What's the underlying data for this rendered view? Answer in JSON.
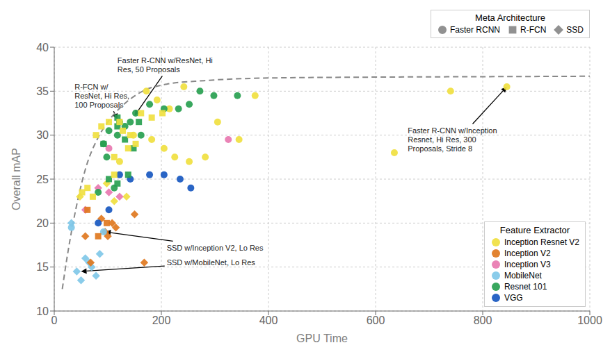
{
  "chart_data": {
    "type": "scatter",
    "xlabel": "GPU Time",
    "ylabel": "Overall mAP",
    "xlim": [
      0,
      1000
    ],
    "ylim": [
      10,
      40
    ],
    "xticks": [
      0,
      200,
      400,
      600,
      800,
      1000
    ],
    "yticks": [
      10,
      15,
      20,
      25,
      30,
      35,
      40
    ],
    "grid": true,
    "marker_legend": {
      "title": "Meta Architecture",
      "items": [
        {
          "name": "Faster RCNN",
          "marker": "circle"
        },
        {
          "name": "R-FCN",
          "marker": "square"
        },
        {
          "name": "SSD",
          "marker": "diamond"
        }
      ]
    },
    "color_legend": {
      "title": "Feature Extractor",
      "items": [
        {
          "name": "Inception Resnet V2",
          "color": "#f0e040"
        },
        {
          "name": "Inception V2",
          "color": "#e07820"
        },
        {
          "name": "Inception V3",
          "color": "#e878b0"
        },
        {
          "name": "MobileNet",
          "color": "#80c8e8"
        },
        {
          "name": "Resnet 101",
          "color": "#28a050"
        },
        {
          "name": "VGG",
          "color": "#1858c0"
        }
      ]
    },
    "points": [
      {
        "x": 32,
        "y": 20.0,
        "arch": "SSD",
        "feat": "MobileNet"
      },
      {
        "x": 42,
        "y": 14.5,
        "arch": "SSD",
        "feat": "MobileNet"
      },
      {
        "x": 50,
        "y": 13.5,
        "arch": "SSD",
        "feat": "MobileNet"
      },
      {
        "x": 58,
        "y": 16.0,
        "arch": "SSD",
        "feat": "MobileNet"
      },
      {
        "x": 65,
        "y": 15.5,
        "arch": "SSD",
        "feat": "MobileNet"
      },
      {
        "x": 70,
        "y": 15.0,
        "arch": "SSD",
        "feat": "MobileNet"
      },
      {
        "x": 78,
        "y": 14.0,
        "arch": "SSD",
        "feat": "MobileNet"
      },
      {
        "x": 85,
        "y": 16.5,
        "arch": "SSD",
        "feat": "MobileNet"
      },
      {
        "x": 95,
        "y": 19.0,
        "arch": "SSD",
        "feat": "Inception V2"
      },
      {
        "x": 100,
        "y": 18.5,
        "arch": "SSD",
        "feat": "Inception V2"
      },
      {
        "x": 108,
        "y": 20.0,
        "arch": "SSD",
        "feat": "Inception V2"
      },
      {
        "x": 115,
        "y": 19.5,
        "arch": "SSD",
        "feat": "Inception V2"
      },
      {
        "x": 58,
        "y": 18.5,
        "arch": "SSD",
        "feat": "Inception V2"
      },
      {
        "x": 68,
        "y": 15.5,
        "arch": "SSD",
        "feat": "Inception V2"
      },
      {
        "x": 150,
        "y": 21.0,
        "arch": "SSD",
        "feat": "Inception V2"
      },
      {
        "x": 168,
        "y": 15.5,
        "arch": "SSD",
        "feat": "Inception V2"
      },
      {
        "x": 88,
        "y": 20.5,
        "arch": "SSD",
        "feat": "Inception V2"
      },
      {
        "x": 48,
        "y": 23.0,
        "arch": "SSD",
        "feat": "Inception Resnet V2"
      },
      {
        "x": 98,
        "y": 24.5,
        "arch": "SSD",
        "feat": "Inception Resnet V2"
      },
      {
        "x": 112,
        "y": 22.5,
        "arch": "SSD",
        "feat": "Inception Resnet V2"
      },
      {
        "x": 135,
        "y": 23.0,
        "arch": "SSD",
        "feat": "Inception Resnet V2"
      },
      {
        "x": 58,
        "y": 21.5,
        "arch": "SSD",
        "feat": "Inception V3"
      },
      {
        "x": 102,
        "y": 23.5,
        "arch": "SSD",
        "feat": "Inception V3"
      },
      {
        "x": 82,
        "y": 24.0,
        "arch": "SSD",
        "feat": "Inception V3"
      },
      {
        "x": 122,
        "y": 23.0,
        "arch": "SSD",
        "feat": "Inception V3"
      },
      {
        "x": 82,
        "y": 20.0,
        "arch": "Faster RCNN",
        "feat": "VGG"
      },
      {
        "x": 102,
        "y": 21.5,
        "arch": "Faster RCNN",
        "feat": "VGG"
      },
      {
        "x": 122,
        "y": 25.5,
        "arch": "Faster RCNN",
        "feat": "VGG"
      },
      {
        "x": 142,
        "y": 25.0,
        "arch": "Faster RCNN",
        "feat": "VGG"
      },
      {
        "x": 178,
        "y": 25.5,
        "arch": "Faster RCNN",
        "feat": "VGG"
      },
      {
        "x": 205,
        "y": 25.5,
        "arch": "Faster RCNN",
        "feat": "VGG"
      },
      {
        "x": 235,
        "y": 25.0,
        "arch": "Faster RCNN",
        "feat": "VGG"
      },
      {
        "x": 255,
        "y": 24.0,
        "arch": "Faster RCNN",
        "feat": "VGG"
      },
      {
        "x": 92,
        "y": 19.0,
        "arch": "Faster RCNN",
        "feat": "MobileNet"
      },
      {
        "x": 32,
        "y": 19.5,
        "arch": "Faster RCNN",
        "feat": "MobileNet"
      },
      {
        "x": 102,
        "y": 28.5,
        "arch": "Faster RCNN",
        "feat": "Inception V3"
      },
      {
        "x": 325,
        "y": 29.5,
        "arch": "Faster RCNN",
        "feat": "Inception V3"
      },
      {
        "x": 122,
        "y": 27.0,
        "arch": "Faster RCNN",
        "feat": "Inception Resnet V2"
      },
      {
        "x": 148,
        "y": 30.0,
        "arch": "Faster RCNN",
        "feat": "Inception Resnet V2"
      },
      {
        "x": 182,
        "y": 29.5,
        "arch": "Faster RCNN",
        "feat": "Inception Resnet V2"
      },
      {
        "x": 205,
        "y": 28.5,
        "arch": "Faster RCNN",
        "feat": "Inception Resnet V2"
      },
      {
        "x": 225,
        "y": 27.5,
        "arch": "Faster RCNN",
        "feat": "Inception Resnet V2"
      },
      {
        "x": 252,
        "y": 27.0,
        "arch": "Faster RCNN",
        "feat": "Inception Resnet V2"
      },
      {
        "x": 282,
        "y": 27.5,
        "arch": "Faster RCNN",
        "feat": "Inception Resnet V2"
      },
      {
        "x": 305,
        "y": 31.5,
        "arch": "Faster RCNN",
        "feat": "Inception Resnet V2"
      },
      {
        "x": 345,
        "y": 29.5,
        "arch": "Faster RCNN",
        "feat": "Inception Resnet V2"
      },
      {
        "x": 375,
        "y": 34.5,
        "arch": "Faster RCNN",
        "feat": "Inception Resnet V2"
      },
      {
        "x": 635,
        "y": 28.0,
        "arch": "Faster RCNN",
        "feat": "Inception Resnet V2"
      },
      {
        "x": 740,
        "y": 35.0,
        "arch": "Faster RCNN",
        "feat": "Inception Resnet V2"
      },
      {
        "x": 845,
        "y": 35.5,
        "arch": "Faster RCNN",
        "feat": "Inception Resnet V2"
      },
      {
        "x": 172,
        "y": 35.0,
        "arch": "Faster RCNN",
        "feat": "Inception Resnet V2"
      },
      {
        "x": 192,
        "y": 34.0,
        "arch": "Faster RCNN",
        "feat": "Inception Resnet V2"
      },
      {
        "x": 215,
        "y": 33.0,
        "arch": "Faster RCNN",
        "feat": "Inception Resnet V2"
      },
      {
        "x": 242,
        "y": 35.5,
        "arch": "Faster RCNN",
        "feat": "Inception Resnet V2"
      },
      {
        "x": 102,
        "y": 30.5,
        "arch": "Faster RCNN",
        "feat": "Resnet 101"
      },
      {
        "x": 122,
        "y": 31.5,
        "arch": "Faster RCNN",
        "feat": "Resnet 101"
      },
      {
        "x": 132,
        "y": 31.0,
        "arch": "Faster RCNN",
        "feat": "Resnet 101"
      },
      {
        "x": 142,
        "y": 31.5,
        "arch": "Faster RCNN",
        "feat": "Resnet 101"
      },
      {
        "x": 152,
        "y": 32.5,
        "arch": "Faster RCNN",
        "feat": "Resnet 101"
      },
      {
        "x": 178,
        "y": 33.5,
        "arch": "Faster RCNN",
        "feat": "Resnet 101"
      },
      {
        "x": 205,
        "y": 33.0,
        "arch": "Faster RCNN",
        "feat": "Resnet 101"
      },
      {
        "x": 232,
        "y": 33.0,
        "arch": "Faster RCNN",
        "feat": "Resnet 101"
      },
      {
        "x": 252,
        "y": 33.5,
        "arch": "Faster RCNN",
        "feat": "Resnet 101"
      },
      {
        "x": 272,
        "y": 35.0,
        "arch": "Faster RCNN",
        "feat": "Resnet 101"
      },
      {
        "x": 298,
        "y": 34.5,
        "arch": "Faster RCNN",
        "feat": "Resnet 101"
      },
      {
        "x": 342,
        "y": 34.5,
        "arch": "Faster RCNN",
        "feat": "Resnet 101"
      },
      {
        "x": 92,
        "y": 29.0,
        "arch": "Faster RCNN",
        "feat": "Resnet 101"
      },
      {
        "x": 118,
        "y": 30.0,
        "arch": "Faster RCNN",
        "feat": "Resnet 101"
      },
      {
        "x": 162,
        "y": 30.0,
        "arch": "Faster RCNN",
        "feat": "Resnet 101"
      },
      {
        "x": 82,
        "y": 23.5,
        "arch": "Faster RCNN",
        "feat": "Resnet 101"
      },
      {
        "x": 112,
        "y": 24.0,
        "arch": "Faster RCNN",
        "feat": "Resnet 101"
      },
      {
        "x": 98,
        "y": 27.5,
        "arch": "Faster RCNN",
        "feat": "Resnet 101"
      },
      {
        "x": 102,
        "y": 25.0,
        "arch": "R-FCN",
        "feat": "Resnet 101"
      },
      {
        "x": 118,
        "y": 31.0,
        "arch": "R-FCN",
        "feat": "Resnet 101"
      },
      {
        "x": 132,
        "y": 29.5,
        "arch": "R-FCN",
        "feat": "Resnet 101"
      },
      {
        "x": 148,
        "y": 28.5,
        "arch": "R-FCN",
        "feat": "Resnet 101"
      },
      {
        "x": 158,
        "y": 31.5,
        "arch": "R-FCN",
        "feat": "Resnet 101"
      },
      {
        "x": 118,
        "y": 32.0,
        "arch": "R-FCN",
        "feat": "Resnet 101"
      },
      {
        "x": 102,
        "y": 31.5,
        "arch": "R-FCN",
        "feat": "Inception Resnet V2"
      },
      {
        "x": 122,
        "y": 31.5,
        "arch": "R-FCN",
        "feat": "Inception Resnet V2"
      },
      {
        "x": 142,
        "y": 30.0,
        "arch": "R-FCN",
        "feat": "Inception Resnet V2"
      },
      {
        "x": 162,
        "y": 32.5,
        "arch": "R-FCN",
        "feat": "Inception Resnet V2"
      },
      {
        "x": 182,
        "y": 32.0,
        "arch": "R-FCN",
        "feat": "Inception Resnet V2"
      },
      {
        "x": 202,
        "y": 32.5,
        "arch": "R-FCN",
        "feat": "Inception Resnet V2"
      },
      {
        "x": 78,
        "y": 30.0,
        "arch": "R-FCN",
        "feat": "Inception Resnet V2"
      },
      {
        "x": 88,
        "y": 31.0,
        "arch": "R-FCN",
        "feat": "Inception Resnet V2"
      },
      {
        "x": 138,
        "y": 28.5,
        "arch": "R-FCN",
        "feat": "Inception Resnet V2"
      },
      {
        "x": 112,
        "y": 27.5,
        "arch": "R-FCN",
        "feat": "Inception Resnet V2"
      },
      {
        "x": 128,
        "y": 30.5,
        "arch": "R-FCN",
        "feat": "Inception Resnet V2"
      },
      {
        "x": 152,
        "y": 29.0,
        "arch": "R-FCN",
        "feat": "Inception Resnet V2"
      },
      {
        "x": 112,
        "y": 25.5,
        "arch": "R-FCN",
        "feat": "Inception Resnet V2"
      },
      {
        "x": 92,
        "y": 29.0,
        "arch": "R-FCN",
        "feat": "Resnet 101"
      },
      {
        "x": 118,
        "y": 24.5,
        "arch": "R-FCN",
        "feat": "Resnet 101"
      },
      {
        "x": 138,
        "y": 25.5,
        "arch": "R-FCN",
        "feat": "Resnet 101"
      },
      {
        "x": 82,
        "y": 18.5,
        "arch": "R-FCN",
        "feat": "Inception V2"
      },
      {
        "x": 98,
        "y": 20.0,
        "arch": "R-FCN",
        "feat": "Inception V2"
      },
      {
        "x": 52,
        "y": 23.5,
        "arch": "R-FCN",
        "feat": "Inception Resnet V2"
      },
      {
        "x": 62,
        "y": 24.0,
        "arch": "R-FCN",
        "feat": "Inception Resnet V2"
      },
      {
        "x": 72,
        "y": 23.0,
        "arch": "R-FCN",
        "feat": "Inception Resnet V2"
      },
      {
        "x": 62,
        "y": 21.5,
        "arch": "R-FCN",
        "feat": "Inception V2"
      }
    ],
    "curve": {
      "x": [
        15,
        25,
        40,
        60,
        80,
        100,
        130,
        165,
        210,
        280,
        400,
        600,
        800,
        1000
      ],
      "y": [
        12.5,
        16.5,
        21.5,
        26.5,
        29.5,
        31.5,
        33.5,
        35.0,
        35.8,
        36.2,
        36.5,
        36.6,
        36.65,
        36.7
      ],
      "color": "#888888",
      "line_style": "dashed"
    },
    "annotations": [
      {
        "text": "Faster R-CNN w/ResNet, Hi\nRes, 50 Proposals",
        "xy": [
          150,
          32.2
        ],
        "xytext": [
          118,
          38.0
        ]
      },
      {
        "text": "R-FCN w/\nResNet, Hi Res,\n100 Proposals",
        "xy": [
          118,
          31.8
        ],
        "xytext": [
          38,
          34.5
        ]
      },
      {
        "text": "SSD w/Inception V2, Lo Res",
        "xy": [
          95,
          19.0
        ],
        "xytext": [
          210,
          17.2
        ]
      },
      {
        "text": "SSD w/MobileNet, Lo Res",
        "xy": [
          50,
          14.5
        ],
        "xytext": [
          210,
          15.5
        ]
      },
      {
        "text": "Faster R-CNN w/Inception\nResnet, Hi Res, 300\nProposals, Stride 8",
        "xy": [
          845,
          35.5
        ],
        "xytext": [
          660,
          29.5
        ]
      }
    ]
  }
}
